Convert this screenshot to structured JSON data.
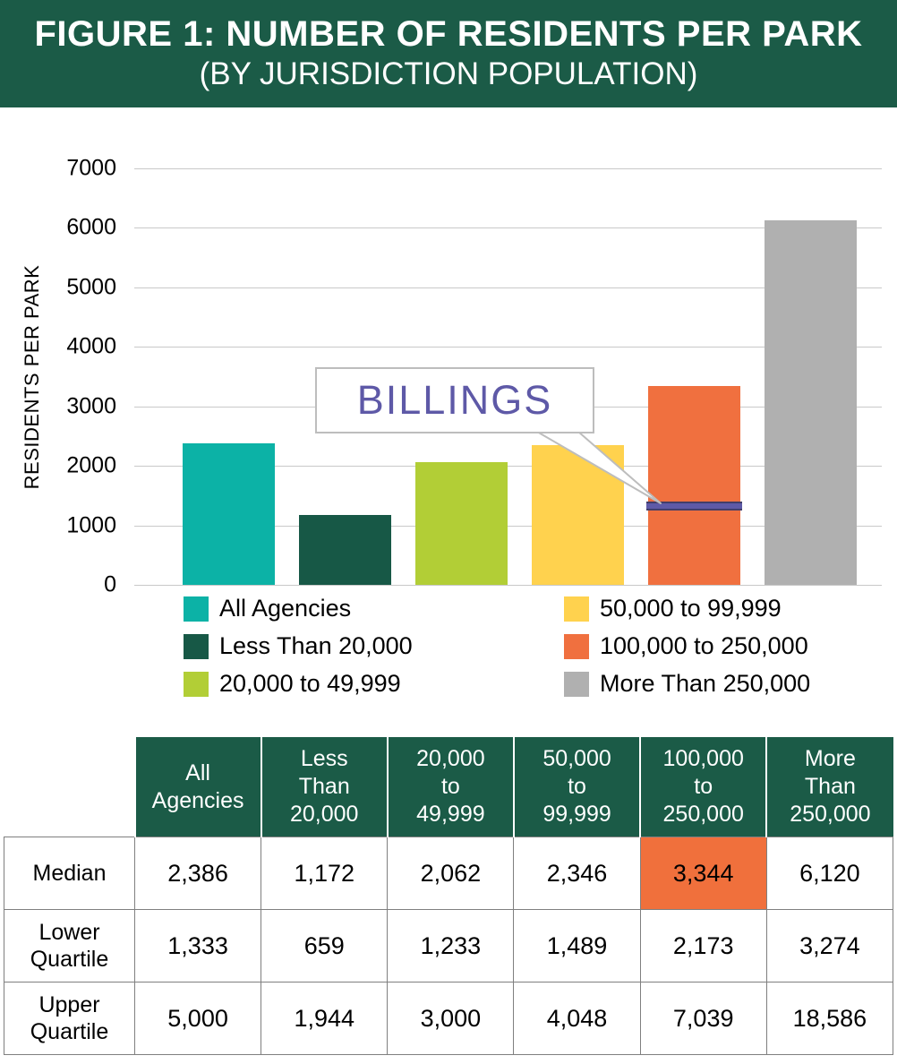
{
  "header": {
    "title": "FIGURE 1: NUMBER OF RESIDENTS PER PARK",
    "subtitle": "(BY JURISDICTION POPULATION)"
  },
  "chart_data": {
    "type": "bar",
    "title": "Number of Residents per Park (by Jurisdiction Population)",
    "categories": [
      "All Agencies",
      "Less Than 20,000",
      "20,000 to 49,999",
      "50,000 to 99,999",
      "100,000 to 250,000",
      "More Than 250,000"
    ],
    "values": [
      2386,
      1172,
      2062,
      2346,
      3344,
      6120
    ],
    "colors": [
      "#0CB2A6",
      "#175846",
      "#B2CE36",
      "#FFD24E",
      "#F0703F",
      "#B0B0B0"
    ],
    "xlabel": "",
    "ylabel": "RESIDENTS PER PARK",
    "ylim": [
      0,
      7000
    ],
    "ytick_step": 1000,
    "grid": true,
    "legend_position": "bottom",
    "annotation": {
      "label": "BILLINGS",
      "bar_index": 4,
      "marker_value": 1330,
      "marker_color": "#5E5AA7"
    }
  },
  "legend": {
    "columns": [
      [
        0,
        1,
        2
      ],
      [
        3,
        4,
        5
      ]
    ]
  },
  "table": {
    "col_headers": [
      "All\nAgencies",
      "Less\nThan\n20,000",
      "20,000\nto\n49,999",
      "50,000\nto\n99,999",
      "100,000\nto\n250,000",
      "More\nThan\n250,000"
    ],
    "rows": [
      {
        "label": "Median",
        "values": [
          "2,386",
          "1,172",
          "2,062",
          "2,346",
          "3,344",
          "6,120"
        ],
        "highlight_col": 4
      },
      {
        "label": "Lower\nQuartile",
        "values": [
          "1,333",
          "659",
          "1,233",
          "1,489",
          "2,173",
          "3,274"
        ]
      },
      {
        "label": "Upper\nQuartile",
        "values": [
          "5,000",
          "1,944",
          "3,000",
          "4,048",
          "7,039",
          "18,586"
        ]
      }
    ],
    "highlight_color": "#F0703C"
  },
  "colors": {
    "banner_bg": "#1B5B47",
    "grid": "#C9C9C9",
    "callout_border": "#BDBDBD",
    "callout_text": "#5E59A7",
    "table_border": "#7F7F7F",
    "highlight": "#F0703C"
  }
}
